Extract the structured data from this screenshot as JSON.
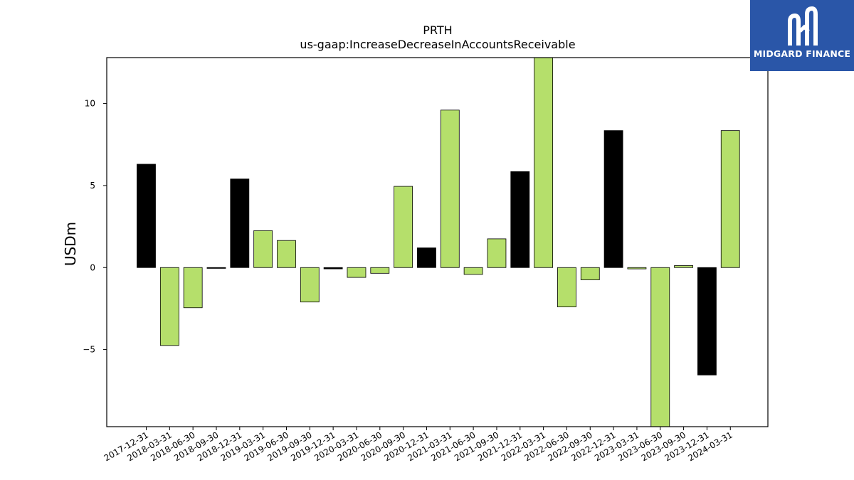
{
  "chart_data": {
    "type": "bar",
    "title": "PRTH",
    "subtitle": "us-gaap:IncreaseDecreaseInAccountsReceivable",
    "ylabel": "USDm",
    "xlabel": "",
    "ylim": [
      -9.7,
      12.8
    ],
    "yticks": [
      -5,
      0,
      5,
      10
    ],
    "ytick_labels": [
      "−5",
      "0",
      "5",
      "10"
    ],
    "grid": false,
    "categories": [
      "2017-12-31",
      "2018-03-31",
      "2018-06-30",
      "2018-09-30",
      "2018-12-31",
      "2019-03-31",
      "2019-06-30",
      "2019-09-30",
      "2019-12-31",
      "2020-03-31",
      "2020-06-30",
      "2020-09-30",
      "2020-12-31",
      "2021-03-31",
      "2021-06-30",
      "2021-09-30",
      "2021-12-31",
      "2022-03-31",
      "2022-06-30",
      "2022-09-30",
      "2022-12-31",
      "2023-03-31",
      "2023-06-30",
      "2023-09-30",
      "2023-12-31",
      "2024-03-31"
    ],
    "values": [
      6.3,
      -4.75,
      -2.45,
      -0.05,
      5.4,
      2.25,
      1.65,
      -2.1,
      -0.08,
      -0.6,
      -0.35,
      4.95,
      1.2,
      9.6,
      -0.42,
      1.75,
      5.85,
      12.8,
      -2.4,
      -0.75,
      8.35,
      -0.08,
      -9.7,
      0.12,
      -6.55,
      8.35
    ],
    "bar_colors": [
      "#000000",
      "#b5df6b",
      "#b5df6b",
      "#000000",
      "#000000",
      "#b5df6b",
      "#b5df6b",
      "#b5df6b",
      "#000000",
      "#b5df6b",
      "#b5df6b",
      "#b5df6b",
      "#000000",
      "#b5df6b",
      "#b5df6b",
      "#b5df6b",
      "#000000",
      "#b5df6b",
      "#b5df6b",
      "#b5df6b",
      "#000000",
      "#b5df6b",
      "#b5df6b",
      "#b5df6b",
      "#000000",
      "#b5df6b"
    ]
  },
  "logo": {
    "text": "MIDGARD FINANCE",
    "background": "#2a56a8"
  }
}
